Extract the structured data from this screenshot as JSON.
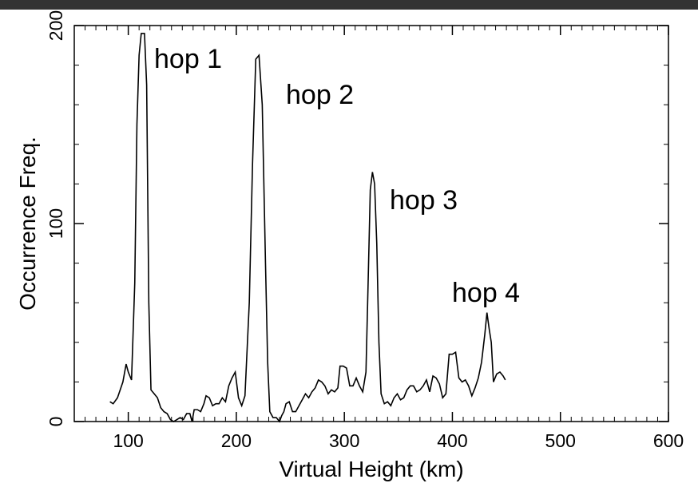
{
  "chart_data": {
    "type": "line",
    "x_label": "Virtual Height (km)",
    "y_label": "Occurrence Freq.",
    "annotations": [
      "hop 1",
      "hop 2",
      "hop 3",
      "hop 4"
    ],
    "x": [
      83,
      86,
      90,
      95,
      98,
      100,
      103,
      106,
      108,
      110,
      112,
      115,
      117,
      119,
      121,
      124,
      127,
      130,
      133,
      136,
      139,
      142,
      145,
      148,
      151,
      154,
      157,
      159,
      161,
      164,
      167,
      170,
      172,
      175,
      178,
      181,
      184,
      187,
      190,
      193,
      196,
      199,
      202,
      205,
      208,
      212,
      215,
      218,
      221,
      224,
      227,
      229,
      231,
      234,
      237,
      240,
      242,
      244,
      246,
      249,
      252,
      255,
      258,
      261,
      264,
      267,
      270,
      273,
      276,
      279,
      282,
      285,
      288,
      291,
      294,
      296,
      299,
      302,
      305,
      308,
      311,
      314,
      317,
      320,
      322,
      324,
      326,
      328,
      330,
      332,
      334,
      337,
      340,
      343,
      346,
      349,
      352,
      355,
      358,
      361,
      364,
      367,
      370,
      373,
      376,
      379,
      382,
      385,
      388,
      391,
      394,
      397,
      400,
      403,
      406,
      409,
      412,
      415,
      418,
      421,
      424,
      427,
      430,
      432,
      434,
      436,
      438,
      441,
      444,
      447,
      449
    ],
    "series": [
      {
        "color": "#000000",
        "values": [
          10,
          9,
          12,
          20,
          29,
          25,
          21,
          70,
          150,
          185,
          196,
          196,
          170,
          60,
          16,
          14,
          12,
          7,
          5,
          4,
          1,
          0,
          1,
          2,
          1,
          4,
          4,
          0,
          6,
          6,
          5,
          9,
          13,
          12,
          8,
          9,
          9,
          12,
          10,
          18,
          22,
          25,
          12,
          8,
          13,
          60,
          130,
          183,
          185,
          160,
          80,
          30,
          5,
          2,
          2,
          0,
          3,
          5,
          9,
          10,
          5,
          5,
          8,
          11,
          14,
          12,
          15,
          17,
          21,
          20,
          18,
          14,
          16,
          15,
          17,
          28,
          28,
          27,
          18,
          18,
          22,
          18,
          15,
          25,
          70,
          117,
          126,
          120,
          90,
          40,
          14,
          9,
          10,
          8,
          12,
          14,
          11,
          12,
          16,
          18,
          18,
          15,
          16,
          18,
          21,
          15,
          23,
          22,
          19,
          12,
          14,
          34,
          34,
          35,
          22,
          20,
          21,
          18,
          13,
          17,
          22,
          30,
          44,
          55,
          47,
          40,
          20,
          24,
          25,
          23,
          21
        ]
      }
    ],
    "xlim": [
      50,
      600
    ],
    "ylim": [
      0,
      200
    ],
    "xticks": [
      100,
      200,
      300,
      400,
      500,
      600
    ],
    "yticks": [
      0,
      100,
      200
    ],
    "xminorticks": [
      60,
      70,
      80,
      90,
      110,
      120,
      130,
      140,
      150,
      160,
      170,
      180,
      190,
      210,
      220,
      230,
      240,
      250,
      260,
      270,
      280,
      290,
      310,
      320,
      330,
      340,
      350,
      360,
      370,
      380,
      390,
      410,
      420,
      430,
      440,
      450,
      460,
      470,
      480,
      490,
      510,
      520,
      530,
      540,
      550,
      560,
      570,
      580,
      590
    ],
    "yminorticks": [
      20,
      40,
      60,
      80,
      120,
      140,
      160,
      180
    ]
  }
}
